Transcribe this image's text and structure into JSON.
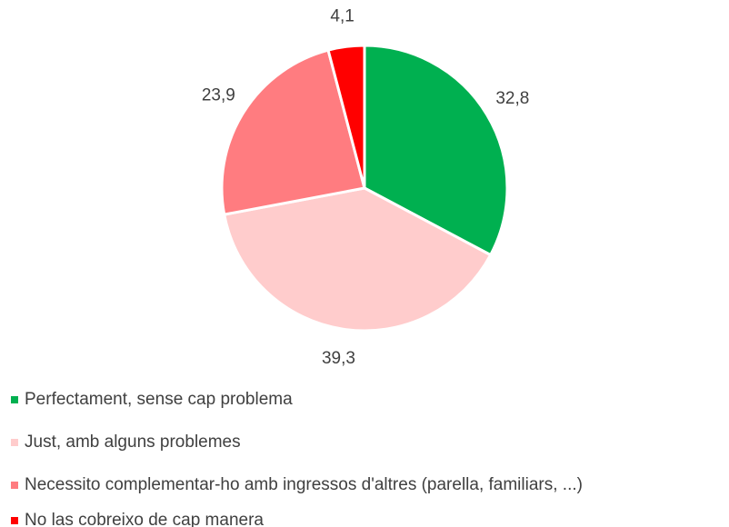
{
  "chart_data": {
    "type": "pie",
    "categories": [
      "Perfectament, sense cap problema",
      "Just, amb alguns problemes",
      "Necessito complementar-ho amb ingressos d'altres (parella, familiars, ...)",
      "No las cobreixo de cap manera"
    ],
    "values": [
      32.8,
      39.3,
      23.9,
      4.1
    ],
    "value_labels": [
      "32,8",
      "39,3",
      "23,9",
      "4,1"
    ],
    "colors": [
      "#00b050",
      "#ffcccc",
      "#ff7c80",
      "#ff0000"
    ],
    "legend": "bottom"
  }
}
